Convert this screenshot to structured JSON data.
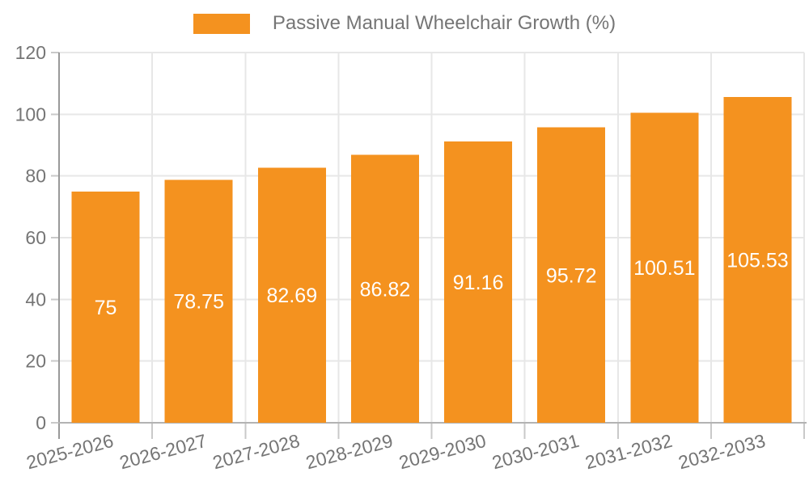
{
  "legend": {
    "label": "Passive Manual Wheelchair Growth (%)"
  },
  "chart_data": {
    "type": "bar",
    "title": "",
    "xlabel": "",
    "ylabel": "",
    "categories": [
      "2025-2026",
      "2026-2027",
      "2027-2028",
      "2028-2029",
      "2029-2030",
      "2030-2031",
      "2031-2032",
      "2032-2033"
    ],
    "series": [
      {
        "name": "Passive Manual Wheelchair Growth (%)",
        "values": [
          75,
          78.75,
          82.69,
          86.82,
          91.16,
          95.72,
          100.51,
          105.53
        ]
      }
    ],
    "value_labels": [
      "75",
      "78.75",
      "82.69",
      "86.82",
      "91.16",
      "95.72",
      "100.51",
      "105.53"
    ],
    "ylim": [
      0,
      120
    ],
    "yticks": [
      0,
      20,
      40,
      60,
      80,
      100,
      120
    ],
    "grid": true,
    "legend_position": "top-center",
    "x_label_rotation_deg": -15,
    "colors": {
      "bar": "#F4921F",
      "value_label": "#FFFFFF",
      "axis_text": "#757575",
      "grid_line": "#E7E7E7",
      "axis_line": "#999999",
      "bottom_line": "#B3B3B3",
      "tick": "#C9C9C9",
      "background": "#FFFFFF"
    }
  }
}
